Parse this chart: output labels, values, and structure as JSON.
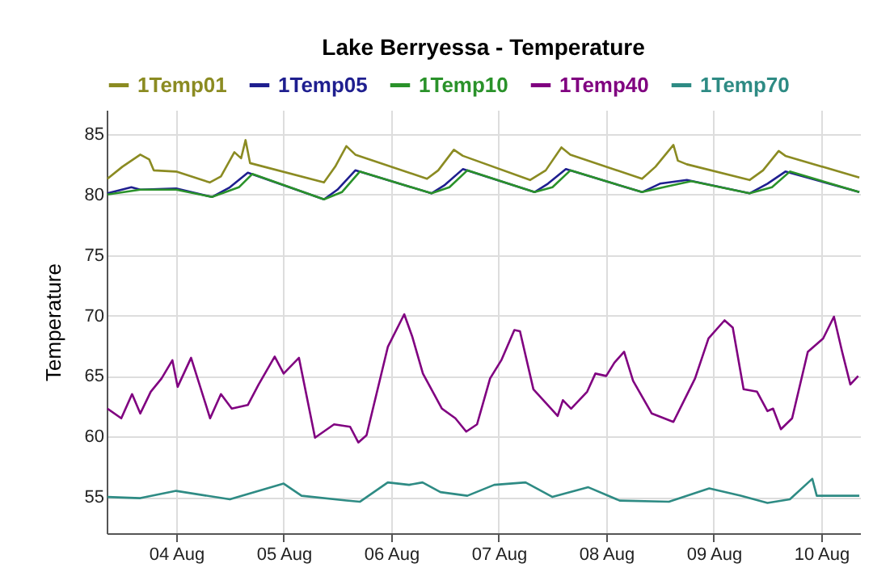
{
  "chart_data": {
    "type": "line",
    "title": "Lake Berryessa - Temperature",
    "ylabel": "Temperature",
    "xlim": [
      "--08-03T08:30",
      "--08-10T08:40"
    ],
    "xticks": [
      {
        "value": "--08-04",
        "label": "04 Aug"
      },
      {
        "value": "--08-05",
        "label": "05 Aug"
      },
      {
        "value": "--08-06",
        "label": "06 Aug"
      },
      {
        "value": "--08-07",
        "label": "07 Aug"
      },
      {
        "value": "--08-08",
        "label": "08 Aug"
      },
      {
        "value": "--08-09",
        "label": "09 Aug"
      },
      {
        "value": "--08-10",
        "label": "10 Aug"
      }
    ],
    "ylim": [
      52,
      87
    ],
    "yticks": [
      55,
      60,
      65,
      70,
      75,
      80,
      85
    ],
    "grid": true,
    "legend": "top",
    "marker": "none",
    "line_style": "solid",
    "series": [
      {
        "name": "1Temp01",
        "color": "#8b8b22",
        "x": [
          "--08-03T08:40",
          "--08-03T12:00",
          "--08-03T16:00",
          "--08-03T18:00",
          "--08-03T19:00",
          "--08-04T00:00",
          "--08-04T07:30",
          "--08-04T10:00",
          "--08-04T13:00",
          "--08-04T14:30",
          "--08-04T15:30",
          "--08-04T16:30",
          "--08-05T09:00",
          "--08-05T11:30",
          "--08-05T14:00",
          "--08-05T16:00",
          "--08-06T08:00",
          "--08-06T10:30",
          "--08-06T14:00",
          "--08-06T16:00",
          "--08-07T07:00",
          "--08-07T10:30",
          "--08-07T14:00",
          "--08-07T16:00",
          "--08-08T08:00",
          "--08-08T11:00",
          "--08-08T15:00",
          "--08-08T16:00",
          "--08-08T18:00",
          "--08-09T08:00",
          "--08-09T11:00",
          "--08-09T14:30",
          "--08-09T16:00",
          "--08-10T08:30"
        ],
        "values": [
          81.3,
          82.3,
          83.3,
          82.9,
          82.0,
          81.9,
          81.0,
          81.5,
          83.5,
          83.0,
          84.5,
          82.6,
          81.0,
          82.3,
          84.0,
          83.3,
          81.3,
          82.0,
          83.7,
          83.2,
          81.2,
          82.0,
          83.9,
          83.3,
          81.3,
          82.3,
          84.1,
          82.8,
          82.5,
          81.2,
          82.0,
          83.6,
          83.2,
          81.4
        ]
      },
      {
        "name": "1Temp05",
        "color": "#1f1f8f",
        "x": [
          "--08-03T08:40",
          "--08-03T14:00",
          "--08-03T16:00",
          "--08-04T00:00",
          "--08-04T08:00",
          "--08-04T12:00",
          "--08-04T16:00",
          "--08-05T09:00",
          "--08-05T12:00",
          "--08-05T16:00",
          "--08-06T09:00",
          "--08-06T12:00",
          "--08-06T16:00",
          "--08-07T08:00",
          "--08-07T11:00",
          "--08-07T15:00",
          "--08-08T08:00",
          "--08-08T12:00",
          "--08-08T18:00",
          "--08-09T08:00",
          "--08-09T12:00",
          "--08-09T16:00",
          "--08-10T08:30"
        ],
        "values": [
          80.1,
          80.6,
          80.4,
          80.5,
          79.8,
          80.6,
          81.8,
          79.6,
          80.4,
          82.0,
          80.1,
          80.8,
          82.1,
          80.2,
          80.9,
          82.1,
          80.2,
          80.9,
          81.2,
          80.1,
          80.9,
          81.9,
          80.2
        ]
      },
      {
        "name": "1Temp10",
        "color": "#2a922a",
        "x": [
          "--08-03T08:40",
          "--08-03T16:00",
          "--08-04T00:00",
          "--08-04T08:00",
          "--08-04T14:00",
          "--08-04T17:00",
          "--08-05T09:00",
          "--08-05T13:00",
          "--08-05T17:00",
          "--08-06T09:00",
          "--08-06T13:00",
          "--08-06T17:00",
          "--08-07T08:00",
          "--08-07T12:00",
          "--08-07T16:00",
          "--08-08T08:00",
          "--08-08T14:00",
          "--08-08T19:00",
          "--08-09T08:00",
          "--08-09T13:00",
          "--08-09T17:00",
          "--08-10T08:30"
        ],
        "values": [
          80.0,
          80.4,
          80.4,
          79.8,
          80.6,
          81.7,
          79.6,
          80.2,
          81.9,
          80.1,
          80.6,
          82.0,
          80.2,
          80.6,
          82.0,
          80.2,
          80.7,
          81.1,
          80.1,
          80.6,
          81.9,
          80.2
        ]
      },
      {
        "name": "1Temp40",
        "color": "#800080",
        "x": [
          "--08-03T08:40",
          "--08-03T11:45",
          "--08-03T14:10",
          "--08-03T16:00",
          "--08-03T18:20",
          "--08-03T20:45",
          "--08-03T23:10",
          "--08-04T00:20",
          "--08-04T03:20",
          "--08-04T07:35",
          "--08-04T10:00",
          "--08-04T12:25",
          "--08-04T16:00",
          "--08-04T18:25",
          "--08-04T22:00",
          "--08-05T00:00",
          "--08-05T03:25",
          "--08-05T07:00",
          "--08-05T11:15",
          "--08-05T14:50",
          "--08-05T16:40",
          "--08-05T18:30",
          "--08-05T23:15",
          "--08-06T02:55",
          "--08-06T04:40",
          "--08-06T07:05",
          "--08-06T11:20",
          "--08-06T14:20",
          "--08-06T16:45",
          "--08-06T19:10",
          "--08-06T22:05",
          "--08-07T00:35",
          "--08-07T03:30",
          "--08-07T04:45",
          "--08-07T07:45",
          "--08-07T13:10",
          "--08-07T14:20",
          "--08-07T16:10",
          "--08-07T19:45",
          "--08-07T21:35",
          "--08-08T00:00",
          "--08-08T01:50",
          "--08-08T04:00",
          "--08-08T06:00",
          "--08-08T10:10",
          "--08-08T15:00",
          "--08-08T19:50",
          "--08-08T22:50",
          "--08-09T02:25",
          "--08-09T04:15",
          "--08-09T06:40",
          "--08-09T09:40",
          "--08-09T12:00",
          "--08-09T13:15",
          "--08-09T15:00",
          "--08-09T17:30",
          "--08-09T21:00",
          "--08-10T00:25",
          "--08-10T02:50",
          "--08-10T04:40",
          "--08-10T06:30",
          "--08-10T08:15"
        ],
        "values": [
          62.3,
          61.5,
          63.5,
          61.9,
          63.7,
          64.8,
          66.3,
          64.1,
          66.5,
          61.5,
          63.5,
          62.3,
          62.6,
          64.3,
          66.6,
          65.2,
          66.5,
          59.9,
          61.0,
          60.8,
          59.5,
          60.1,
          67.4,
          70.1,
          68.3,
          65.2,
          62.3,
          61.5,
          60.4,
          61.0,
          64.8,
          66.3,
          68.8,
          68.7,
          63.9,
          61.7,
          63.0,
          62.3,
          63.7,
          65.2,
          65.0,
          66.1,
          67.0,
          64.6,
          61.9,
          61.2,
          64.8,
          68.1,
          69.6,
          69.0,
          63.9,
          63.7,
          62.1,
          62.3,
          60.6,
          61.5,
          67.0,
          68.1,
          69.9,
          67.0,
          64.3,
          65.0
        ]
      },
      {
        "name": "1Temp70",
        "color": "#2e8b84",
        "x": [
          "--08-03T08:40",
          "--08-03T16:00",
          "--08-04T00:00",
          "--08-04T12:00",
          "--08-05T00:00",
          "--08-05T04:00",
          "--08-05T14:00",
          "--08-05T17:00",
          "--08-05T23:15",
          "--08-06T04:00",
          "--08-06T07:00",
          "--08-06T11:00",
          "--08-06T17:00",
          "--08-06T23:00",
          "--08-07T06:00",
          "--08-07T12:00",
          "--08-07T20:00",
          "--08-08T03:00",
          "--08-08T14:00",
          "--08-08T23:00",
          "--08-09T06:00",
          "--08-09T12:00",
          "--08-09T17:00",
          "--08-09T22:00",
          "--08-09T23:00",
          "--08-10T08:30"
        ],
        "values": [
          55.0,
          54.9,
          55.5,
          54.8,
          56.1,
          55.1,
          54.7,
          54.6,
          56.2,
          56.0,
          56.2,
          55.4,
          55.1,
          56.0,
          56.2,
          55.0,
          55.8,
          54.7,
          54.6,
          55.7,
          55.1,
          54.5,
          54.8,
          56.5,
          55.1,
          55.1
        ]
      }
    ]
  }
}
